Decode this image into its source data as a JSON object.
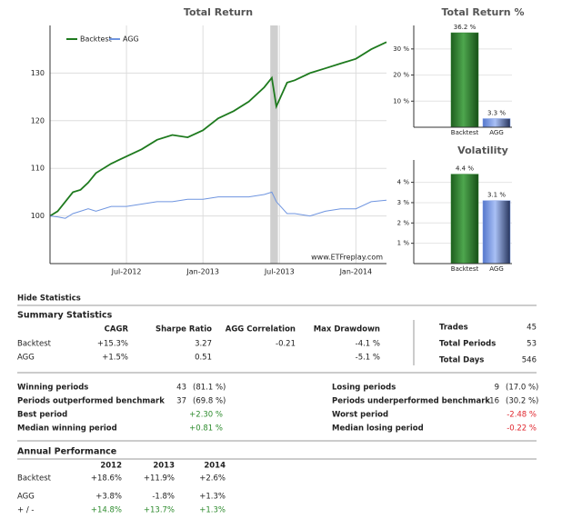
{
  "chart_data": [
    {
      "type": "line",
      "title": "Total Return",
      "x": [
        2012.0,
        2012.05,
        2012.1,
        2012.15,
        2012.2,
        2012.25,
        2012.3,
        2012.4,
        2012.5,
        2012.6,
        2012.7,
        2012.8,
        2012.9,
        2013.0,
        2013.1,
        2013.2,
        2013.3,
        2013.4,
        2013.45,
        2013.48,
        2013.55,
        2013.6,
        2013.7,
        2013.8,
        2013.9,
        2014.0,
        2014.1,
        2014.2
      ],
      "series": [
        {
          "name": "Backtest",
          "color": "#1e7a1e",
          "values": [
            100,
            101,
            103,
            105,
            105.5,
            107,
            109,
            111,
            112.5,
            114,
            116,
            117,
            116.5,
            118,
            120.5,
            122,
            124,
            127,
            129,
            123,
            128,
            128.5,
            130,
            131,
            132,
            133,
            135,
            136.5
          ]
        },
        {
          "name": "AGG",
          "color": "#6f95e0",
          "values": [
            100,
            99.8,
            99.5,
            100.5,
            101,
            101.5,
            101,
            102,
            102,
            102.5,
            103,
            103,
            103.5,
            103.5,
            104,
            104,
            104,
            104.5,
            105,
            103,
            100.5,
            100.5,
            100,
            101,
            101.5,
            101.5,
            103,
            103.3
          ]
        }
      ],
      "shaded_range": [
        2013.44,
        2013.49
      ],
      "xlim": [
        2012.0,
        2014.2
      ],
      "xticks": [
        {
          "value": 2012.5,
          "label": "Jul-2012"
        },
        {
          "value": 2013.0,
          "label": "Jan-2013"
        },
        {
          "value": 2013.5,
          "label": "Jul-2013"
        },
        {
          "value": 2014.0,
          "label": "Jan-2014"
        }
      ],
      "ylim": [
        90,
        140
      ],
      "yticks": [
        100,
        110,
        120,
        130
      ],
      "grid": true,
      "legend": "top-left",
      "watermark": "www.ETFreplay.com"
    },
    {
      "type": "bar",
      "title": "Total Return %",
      "categories": [
        "Backtest",
        "AGG"
      ],
      "values": [
        36.2,
        3.3
      ],
      "value_labels": [
        "36.2 %",
        "3.3 %"
      ],
      "colors": [
        "#2a7d2a",
        "#7f9ee8"
      ],
      "ylim": [
        0,
        39
      ],
      "yticks": [
        {
          "value": 10,
          "label": "10 %"
        },
        {
          "value": 20,
          "label": "20 %"
        },
        {
          "value": 30,
          "label": "30 %"
        }
      ],
      "grid": true
    },
    {
      "type": "bar",
      "title": "Volatility",
      "categories": [
        "Backtest",
        "AGG"
      ],
      "values": [
        4.4,
        3.1
      ],
      "value_labels": [
        "4.4 %",
        "3.1 %"
      ],
      "colors": [
        "#2a7d2a",
        "#7f9ee8"
      ],
      "ylim": [
        0,
        5.1
      ],
      "yticks": [
        {
          "value": 1,
          "label": "1 %"
        },
        {
          "value": 2,
          "label": "2 %"
        },
        {
          "value": 3,
          "label": "3 %"
        },
        {
          "value": 4,
          "label": "4 %"
        }
      ],
      "grid": true
    }
  ],
  "statistics": {
    "toggle": "Hide Statistics",
    "summary": {
      "title": "Summary Statistics",
      "columns": [
        "CAGR",
        "Sharpe Ratio",
        "AGG Correlation",
        "Max Drawdown"
      ],
      "rows": [
        [
          "Backtest",
          "+15.3%",
          "3.27",
          "-0.21",
          "-4.1 %"
        ],
        [
          "AGG",
          "+1.5%",
          "0.51",
          null,
          "-5.1 %"
        ]
      ]
    },
    "counts": [
      [
        "Trades",
        "45"
      ],
      [
        "Total Periods",
        "53"
      ],
      [
        "Total Days",
        "546"
      ]
    ],
    "periods": {
      "left": [
        [
          "Winning periods",
          "43",
          "(81.1 %)"
        ],
        [
          "Periods outperformed benchmark",
          "37",
          "(69.8 %)"
        ],
        [
          "Best period",
          "+2.30 %"
        ],
        [
          "Median winning period",
          "+0.81 %"
        ]
      ],
      "right": [
        [
          "Losing periods",
          "9",
          "(17.0 %)"
        ],
        [
          "Periods underperformed benchmark",
          "16",
          "(30.2 %)"
        ],
        [
          "Worst period",
          "-2.48 %"
        ],
        [
          "Median losing period",
          "-0.22 %"
        ]
      ]
    },
    "annual": {
      "title": "Annual Performance",
      "columns": [
        "2012",
        "2013",
        "2014"
      ],
      "rows": [
        [
          "Backtest",
          "+18.6%",
          "+11.9%",
          "+2.6%"
        ],
        [
          "AGG",
          "+3.8%",
          "-1.8%",
          "+1.3%"
        ],
        [
          "+ / -",
          "+14.8%",
          "+13.7%",
          "+1.3%"
        ]
      ]
    }
  }
}
